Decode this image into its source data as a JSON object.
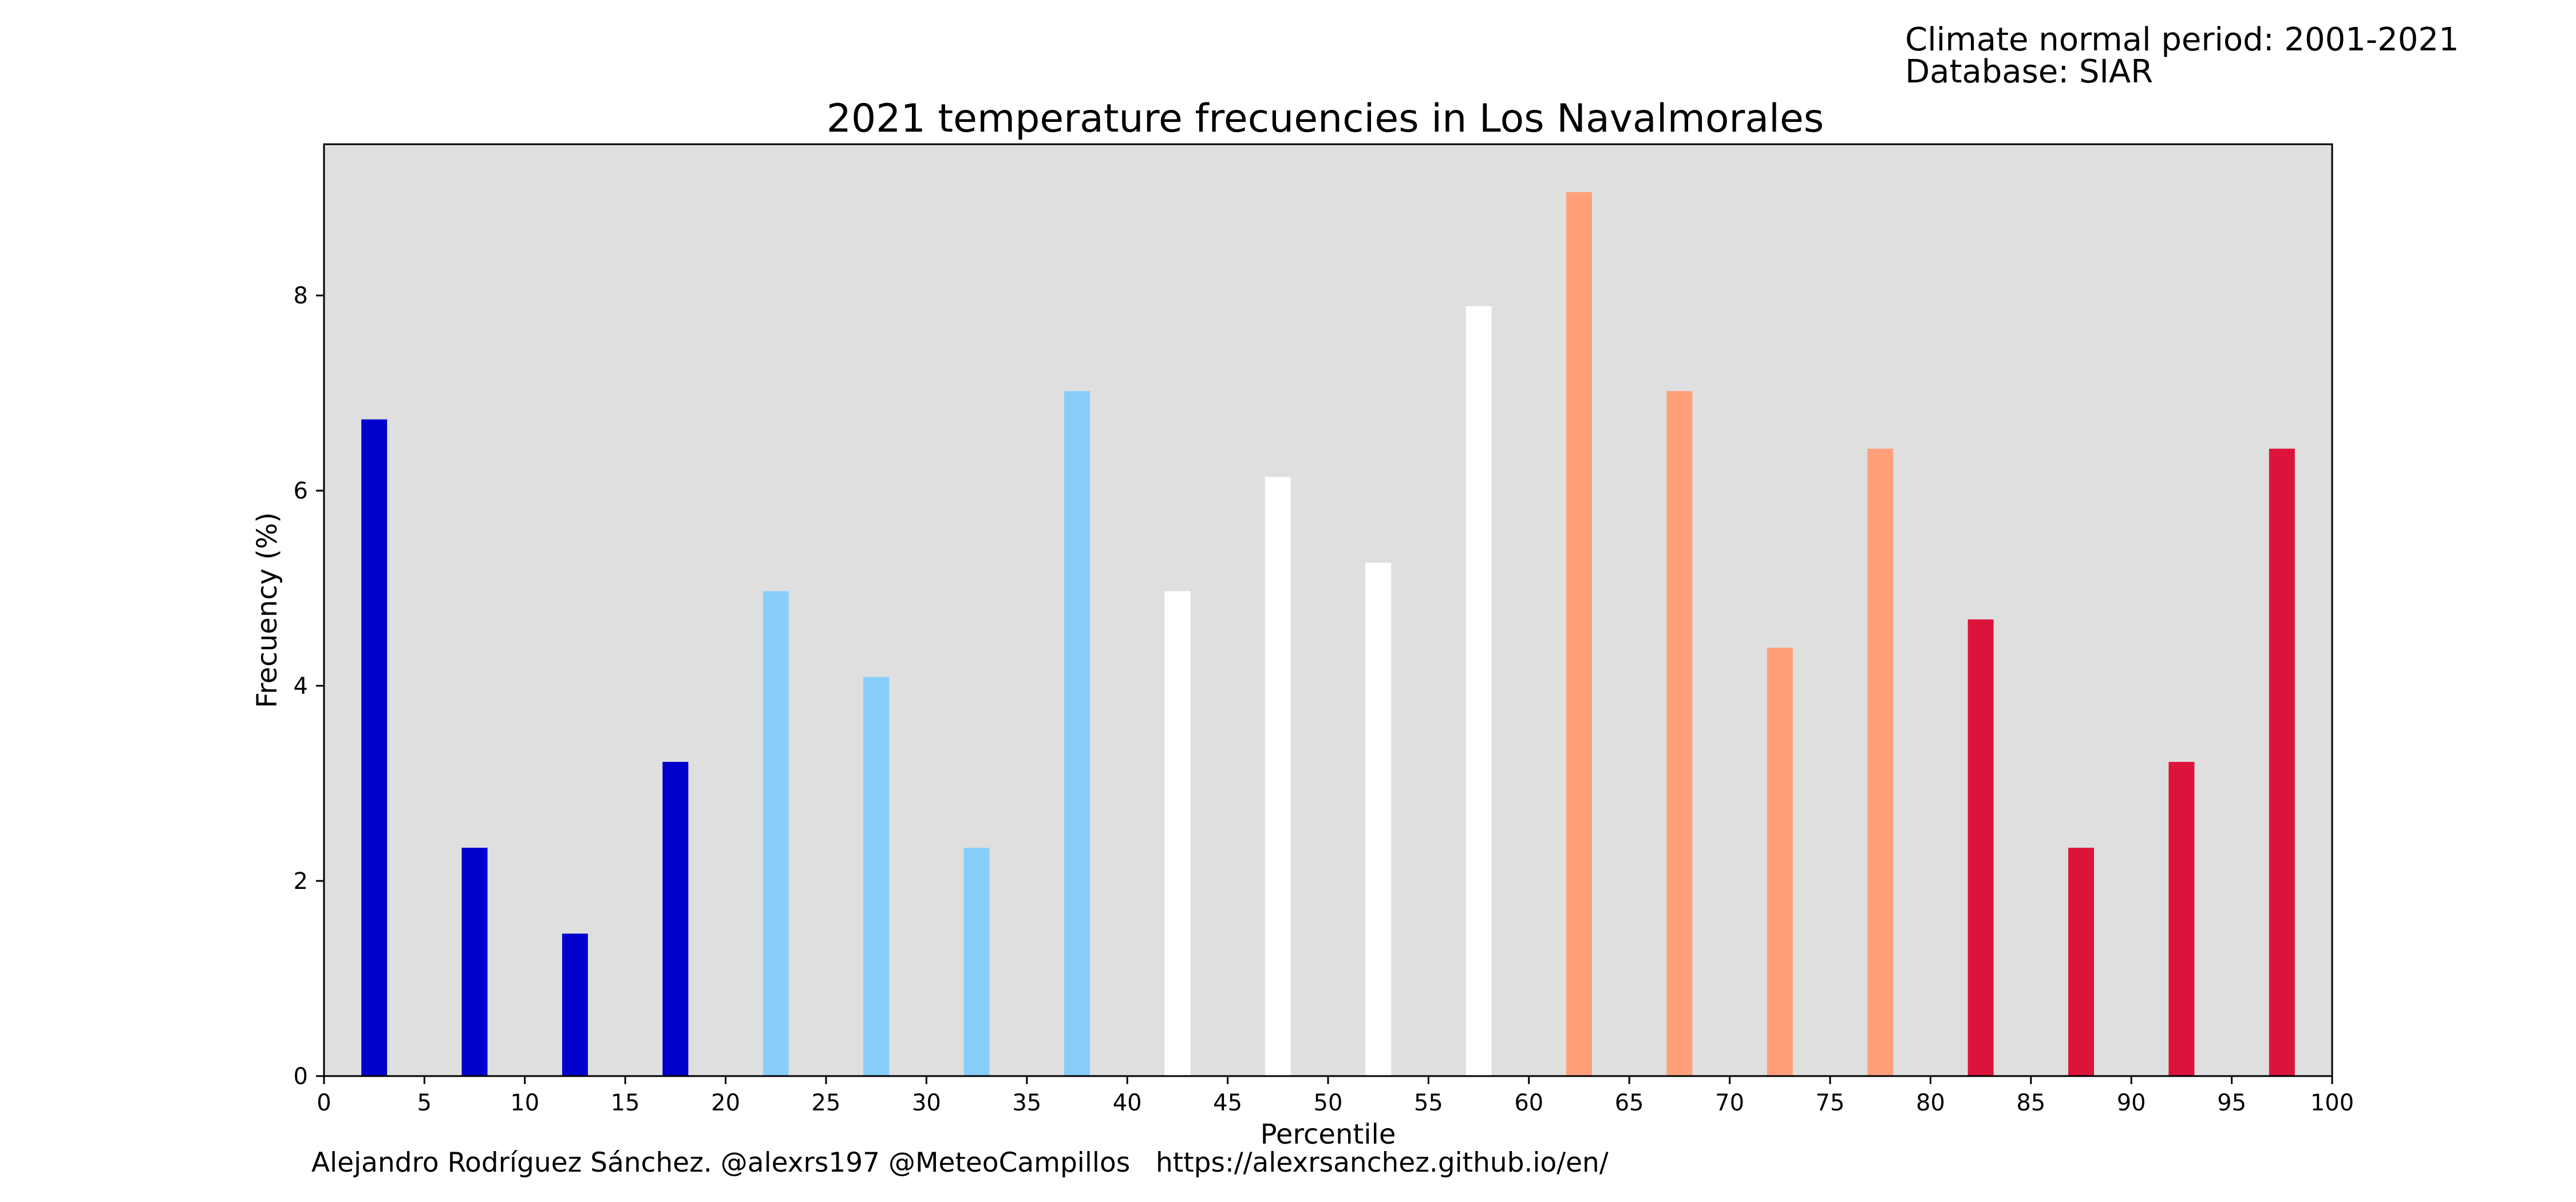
{
  "header": {
    "line1": "Climate normal period: 2001-2021",
    "line2": "Database: SIAR"
  },
  "footer": {
    "credit": "Alejandro Rodríguez Sánchez. @alexrs197 @MeteoCampillos   https://alexrsanchez.github.io/en/"
  },
  "chart_data": {
    "type": "bar",
    "title": "2021 temperature frecuencies in Los Navalmorales",
    "xlabel": "Percentile",
    "ylabel": "Frecuency (%)",
    "xlim": [
      0,
      100
    ],
    "ylim": [
      0,
      9.55
    ],
    "xticks": [
      "0",
      "5",
      "10",
      "15",
      "20",
      "25",
      "30",
      "35",
      "40",
      "45",
      "50",
      "55",
      "60",
      "65",
      "70",
      "75",
      "80",
      "85",
      "90",
      "95",
      "100"
    ],
    "yticks": [
      "0",
      "2",
      "4",
      "6",
      "8"
    ],
    "plot_background": "#dfdfdf",
    "grid": false,
    "categories": [
      2.5,
      7.5,
      12.5,
      17.5,
      22.5,
      27.5,
      32.5,
      37.5,
      42.5,
      47.5,
      52.5,
      57.5,
      62.5,
      67.5,
      72.5,
      77.5,
      82.5,
      87.5,
      92.5,
      97.5
    ],
    "values": [
      6.73,
      2.34,
      1.46,
      3.22,
      4.97,
      4.09,
      2.34,
      7.02,
      4.97,
      6.14,
      5.26,
      7.89,
      9.06,
      7.02,
      4.39,
      6.43,
      4.68,
      2.34,
      3.22,
      6.43
    ],
    "colors": [
      "#0000cd",
      "#0000cd",
      "#0000cd",
      "#0000cd",
      "#87cefa",
      "#87cefa",
      "#87cefa",
      "#87cefa",
      "#ffffff",
      "#ffffff",
      "#ffffff",
      "#ffffff",
      "#ffa07a",
      "#ffa07a",
      "#ffa07a",
      "#ffa07a",
      "#dc143c",
      "#dc143c",
      "#dc143c",
      "#dc143c"
    ]
  }
}
